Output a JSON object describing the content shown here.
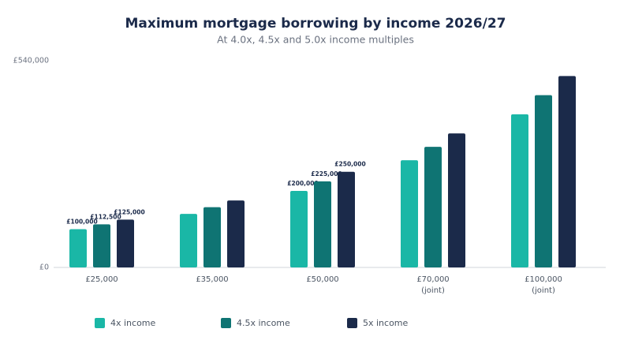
{
  "chart_data": {
    "type": "bar",
    "title": "Maximum mortgage borrowing by income 2026/27",
    "subtitle": "At 4.0x, 4.5x and 5.0x income multiples",
    "categories": [
      "£25,000",
      "£35,000",
      "£50,000",
      "£70,000\n(joint)",
      "£100,000\n(joint)"
    ],
    "series": [
      {
        "name": "4x income",
        "color": "#1ab7a6",
        "values": [
          100000,
          140000,
          200000,
          280000,
          400000
        ],
        "value_labels": [
          "£100,000",
          null,
          "£200,000",
          null,
          null
        ]
      },
      {
        "name": "4.5x income",
        "color": "#0f7473",
        "values": [
          112500,
          157500,
          225000,
          315000,
          450000
        ],
        "value_labels": [
          "£112,500",
          null,
          "£225,000",
          null,
          null
        ]
      },
      {
        "name": "5x income",
        "color": "#1b2a4a",
        "values": [
          125000,
          175000,
          250000,
          350000,
          500000
        ],
        "value_labels": [
          "£125,000",
          null,
          "£250,000",
          null,
          null
        ]
      }
    ],
    "ylim": [
      0,
      540000
    ],
    "yticks": [
      {
        "value": 0,
        "label": "£0"
      },
      {
        "value": 540000,
        "label": "£540,000"
      }
    ],
    "grid": false,
    "legend": "bottom"
  }
}
